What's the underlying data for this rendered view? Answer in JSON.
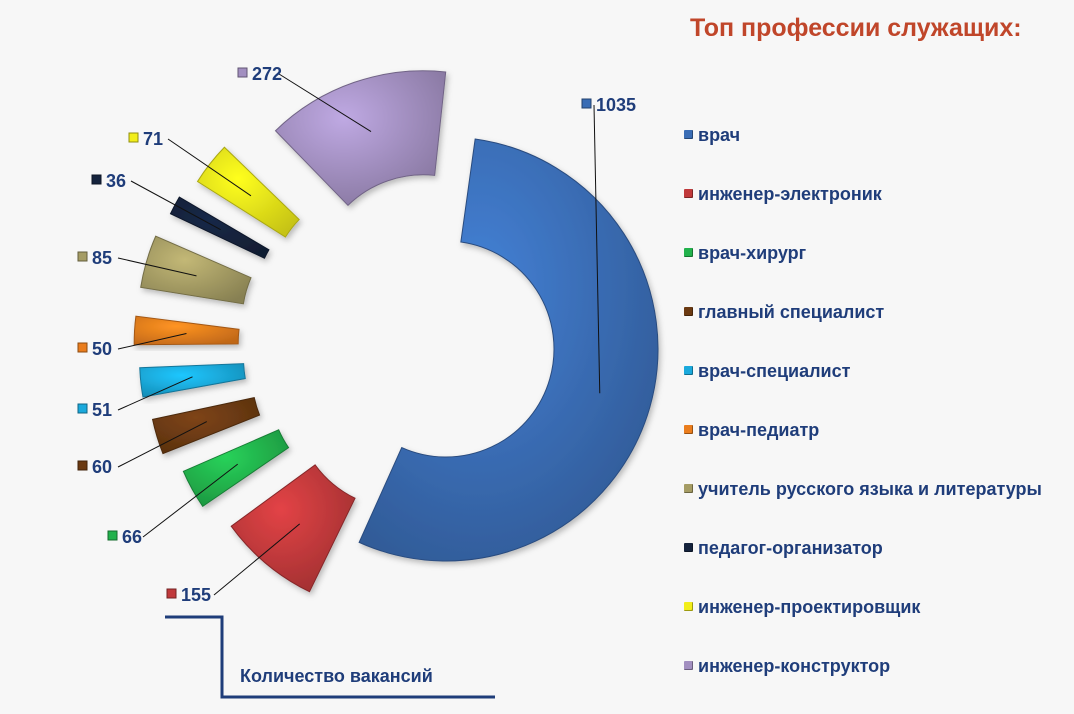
{
  "title": "Топ профессии служащих:",
  "footer_label": "Количество вакансий",
  "chart_data": {
    "type": "pie",
    "variant": "exploded-donut",
    "title": "Топ профессии служащих:",
    "legend_position": "right",
    "categories": [
      "врач",
      "инженер-электроник",
      "врач-хирург",
      "главный специалист",
      "врач-специалист",
      "врач-педиатр",
      "учитель русского языка и литературы",
      "педагог-организатор",
      "инженер-проектировщик",
      "инженер-конструктор"
    ],
    "values": [
      1035,
      155,
      66,
      60,
      51,
      50,
      85,
      36,
      71,
      272
    ],
    "colors": [
      "#3a6db5",
      "#c0393b",
      "#22b24c",
      "#6b3a12",
      "#1aa9dc",
      "#ea7d1d",
      "#a59c64",
      "#15233d",
      "#f2ee1a",
      "#a28fc0"
    ]
  }
}
